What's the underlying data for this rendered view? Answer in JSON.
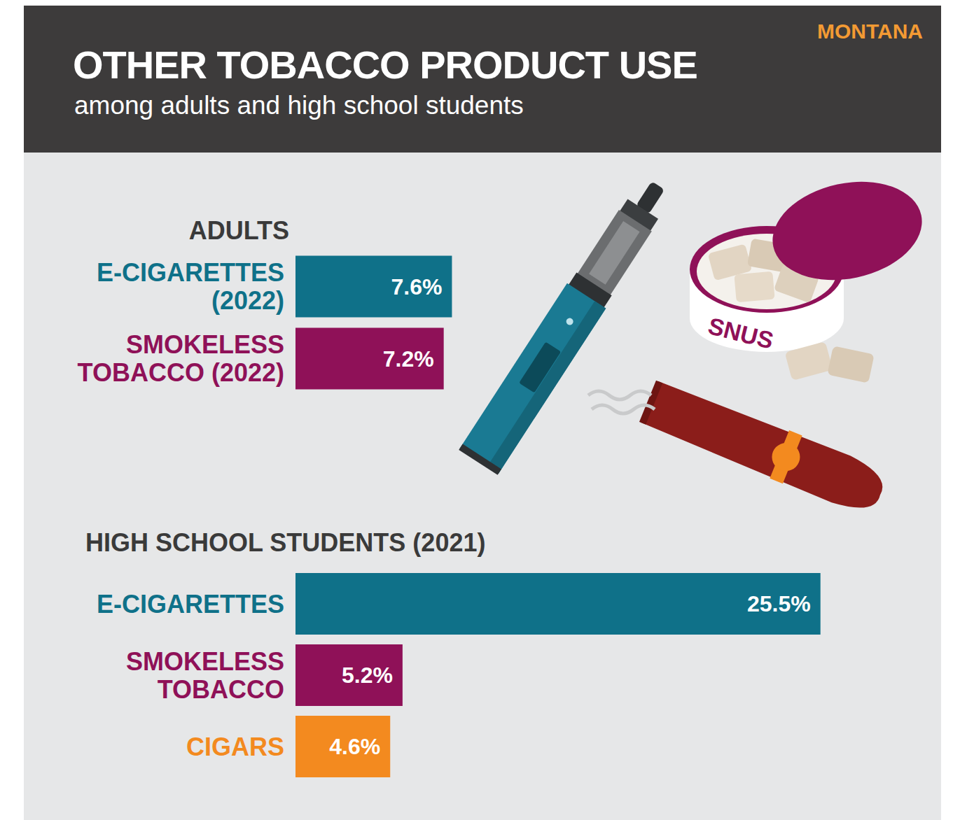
{
  "header": {
    "title": "OTHER TOBACCO PRODUCT USE",
    "subtitle": "among adults and high school students",
    "region": "MONTANA"
  },
  "illustration": {
    "label": "SNUS"
  },
  "chart_data": [
    {
      "type": "bar",
      "title": "ADULTS",
      "orientation": "horizontal",
      "categories": [
        "E-CIGARETTES (2022)",
        "SMOKELESS TOBACCO (2022)"
      ],
      "values": [
        7.6,
        7.2
      ],
      "value_labels": [
        "7.6%",
        "7.2%"
      ],
      "colors": [
        "#0f7189",
        "#8f1158"
      ],
      "xlim": [
        0,
        30
      ],
      "data_labels": true,
      "tick_labels": "y",
      "grid": false
    },
    {
      "type": "bar",
      "title": "HIGH SCHOOL STUDENTS (2021)",
      "orientation": "horizontal",
      "categories": [
        "E-CIGARETTES",
        "SMOKELESS TOBACCO",
        "CIGARS"
      ],
      "values": [
        25.5,
        5.2,
        4.6
      ],
      "value_labels": [
        "25.5%",
        "5.2%",
        "4.6%"
      ],
      "colors": [
        "#0f7189",
        "#8f1158",
        "#f38a1f"
      ],
      "xlim": [
        0,
        30
      ],
      "data_labels": true,
      "tick_labels": "y",
      "grid": false
    }
  ]
}
